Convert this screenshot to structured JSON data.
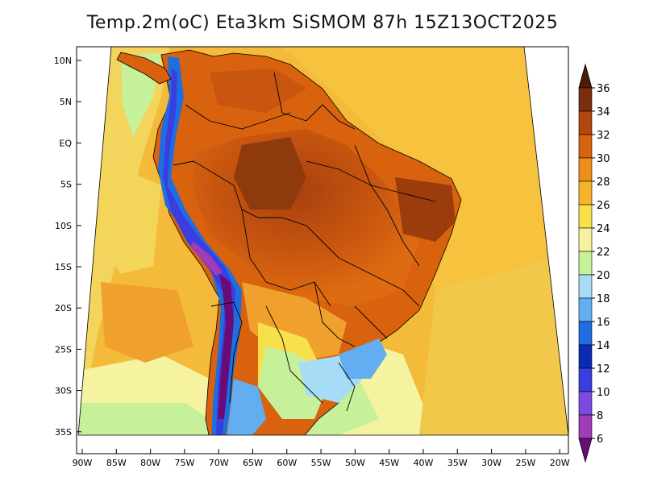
{
  "title": "Temp.2m(oC) Eta3km SiSMOM 87h 15Z13OCT2025",
  "lat_labels": [
    "10N",
    "5N",
    "EQ",
    "5S",
    "10S",
    "15S",
    "20S",
    "25S",
    "30S",
    "35S"
  ],
  "lon_labels": [
    "90W",
    "85W",
    "80W",
    "75W",
    "70W",
    "65W",
    "60W",
    "55W",
    "50W",
    "45W",
    "40W",
    "35W",
    "30W",
    "25W",
    "20W"
  ],
  "colorbar": {
    "labels": [
      "36",
      "34",
      "32",
      "30",
      "28",
      "26",
      "24",
      "22",
      "20",
      "18",
      "16",
      "14",
      "12",
      "10",
      "8",
      "6"
    ],
    "colors": [
      "#4a1d08",
      "#7a2e0e",
      "#b3460c",
      "#d8620e",
      "#f08e1a",
      "#f6b428",
      "#f7e04a",
      "#f6f3a0",
      "#c6f09a",
      "#a6dcf6",
      "#62aef0",
      "#1e6ee0",
      "#0a2cb4",
      "#3a3ee0",
      "#7c4ae0",
      "#a03cb8",
      "#6a0c78"
    ]
  }
}
